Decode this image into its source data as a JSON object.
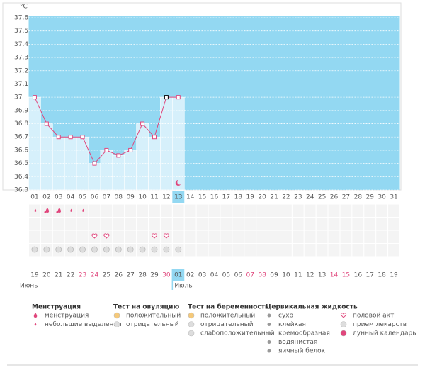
{
  "chart_data": {
    "type": "line",
    "y_label": "°C",
    "categories": [
      "01",
      "02",
      "03",
      "04",
      "05",
      "06",
      "07",
      "08",
      "09",
      "10",
      "11",
      "12",
      "13",
      "14",
      "15",
      "16",
      "17",
      "18",
      "19",
      "20",
      "21",
      "22",
      "23",
      "24",
      "25",
      "26",
      "27",
      "28",
      "29",
      "30",
      "31"
    ],
    "values": [
      37,
      36.8,
      36.7,
      36.7,
      36.7,
      36.5,
      36.6,
      36.56,
      36.6,
      36.8,
      36.7,
      37,
      37,
      null,
      null,
      null,
      null,
      null,
      null,
      null,
      null,
      null,
      null,
      null,
      null,
      null,
      null,
      null,
      null,
      null,
      null
    ],
    "color": "#e0467c",
    "ylim": [
      36.3,
      37.6
    ],
    "yticks": [
      36.3,
      36.4,
      36.5,
      36.6,
      36.7,
      36.8,
      36.9,
      37,
      37.1,
      37.2,
      37.3,
      37.4,
      37.5,
      37.6
    ],
    "grid": true
  },
  "calendar": {
    "dates": [
      "19",
      "20",
      "21",
      "22",
      "23",
      "24",
      "25",
      "26",
      "27",
      "28",
      "29",
      "30",
      "01",
      "02",
      "03",
      "04",
      "05",
      "06",
      "07",
      "08",
      "09",
      "10",
      "11",
      "12",
      "13",
      "14",
      "15",
      "16",
      "17",
      "18",
      "19"
    ],
    "months": [
      "Июнь",
      "Июль"
    ]
  },
  "legend": {
    "groups": [
      {
        "title": "Менструация",
        "items": [
          "менструация",
          "небольшие выделения"
        ]
      },
      {
        "title": "Тест на овуляцию",
        "items": [
          "положительный",
          "отрицательный"
        ]
      },
      {
        "title": "Тест на беременность",
        "items": [
          "положительный",
          "отрицательный",
          "слабоположительный"
        ]
      },
      {
        "title": "Цервикальная жидкость",
        "items": [
          "сухо",
          "клейкая",
          "кремообразная",
          "водянистая",
          "яичный белок"
        ]
      },
      {
        "items": [
          "половой акт",
          "прием лекарств",
          "лунный календарь"
        ]
      }
    ]
  }
}
